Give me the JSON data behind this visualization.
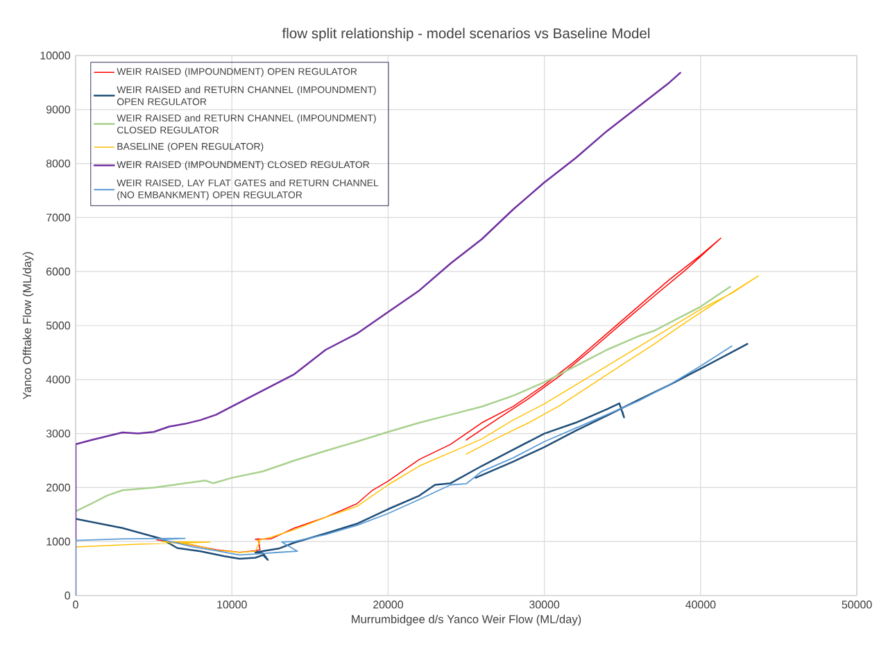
{
  "chart_data": {
    "type": "line",
    "title": "flow split relationship - model scenarios vs Baseline Model",
    "xlabel": "Murrumbidgee d/s Yanco Weir Flow (ML/day)",
    "ylabel": "Yanco Offtake Flow (ML/day)",
    "xlim": [
      0,
      50000
    ],
    "ylim": [
      0,
      10000
    ],
    "xticks": [
      0,
      10000,
      20000,
      30000,
      40000,
      50000
    ],
    "yticks": [
      0,
      1000,
      2000,
      3000,
      4000,
      5000,
      6000,
      7000,
      8000,
      9000,
      10000
    ],
    "grid": true,
    "legend": "top left",
    "marker": "none",
    "line_style": "solid",
    "series": [
      {
        "name": "WEIR RAISED (IMPOUNDMENT) OPEN REGULATOR",
        "color": "#ff0000",
        "x": [
          5200,
          7000,
          9000,
          10500,
          11500,
          11800,
          11700,
          11500,
          12500,
          14000,
          16000,
          18000,
          19000,
          20000,
          22000,
          24000,
          26000,
          28000,
          30000,
          32000,
          34000,
          36000,
          38000,
          40000,
          41300,
          39000,
          37000,
          35000,
          33000,
          31000,
          29000,
          27000,
          25000
        ],
        "values": [
          1030,
          960,
          850,
          800,
          830,
          850,
          1050,
          1040,
          1050,
          1250,
          1450,
          1700,
          1950,
          2120,
          2520,
          2800,
          3200,
          3500,
          3900,
          4350,
          4850,
          5350,
          5850,
          6300,
          6620,
          6020,
          5540,
          5050,
          4550,
          4070,
          3650,
          3270,
          2880
        ]
      },
      {
        "name": "WEIR RAISED and RETURN CHANNEL (IMPOUNDMENT) OPEN REGULATOR",
        "color": "#1f4e79",
        "x": [
          0,
          3000,
          5500,
          6500,
          8000,
          9500,
          10500,
          11500,
          12000,
          12300,
          12000,
          11500,
          13000,
          14000,
          16000,
          18000,
          20000,
          22000,
          23000,
          24000,
          26000,
          28000,
          30000,
          32000,
          34000,
          34800,
          35100,
          35000,
          null,
          25600,
          28000,
          30000,
          32000,
          34000,
          36000,
          38000,
          40000,
          43000
        ],
        "values": [
          1420,
          1250,
          1050,
          880,
          820,
          730,
          680,
          700,
          750,
          660,
          780,
          800,
          870,
          980,
          1150,
          1330,
          1600,
          1850,
          2050,
          2080,
          2400,
          2700,
          3000,
          3200,
          3450,
          3560,
          3300,
          3400,
          null,
          2180,
          2480,
          2750,
          3050,
          3330,
          3620,
          3900,
          4200,
          4660
        ]
      },
      {
        "name": "WEIR RAISED and RETURN CHANNEL (IMPOUNDMENT) CLOSED REGULATOR",
        "color": "#a9d18e",
        "x": [
          0,
          1000,
          2000,
          3000,
          5000,
          7000,
          8300,
          8800,
          10000,
          12000,
          14000,
          16000,
          18000,
          20000,
          22000,
          24000,
          26000,
          28000,
          30000,
          32000,
          34000,
          36000,
          37000,
          38000,
          40000,
          41900
        ],
        "values": [
          1560,
          1700,
          1850,
          1950,
          2000,
          2080,
          2130,
          2080,
          2180,
          2300,
          2500,
          2680,
          2850,
          3030,
          3200,
          3350,
          3500,
          3700,
          3950,
          4250,
          4550,
          4800,
          4900,
          5050,
          5350,
          5720
        ]
      },
      {
        "name": "BASELINE (OPEN REGULATOR)",
        "color": "#ffc000",
        "x": [
          0,
          4000,
          8600,
          5500,
          7500,
          9000,
          10500,
          11500,
          11800,
          11600,
          12500,
          14000,
          16000,
          18000,
          20000,
          22000,
          24000,
          26000,
          28000,
          30000,
          32000,
          34000,
          36000,
          38000,
          40000,
          42000,
          43700,
          41000,
          39000,
          37000,
          35000,
          33000,
          31000,
          29000,
          27000,
          25000
        ],
        "values": [
          900,
          950,
          990,
          1000,
          940,
          840,
          800,
          820,
          1000,
          1020,
          1080,
          1220,
          1450,
          1650,
          2050,
          2400,
          2650,
          2900,
          3250,
          3550,
          3900,
          4250,
          4600,
          4950,
          5300,
          5600,
          5920,
          5430,
          5050,
          4650,
          4280,
          3900,
          3520,
          3200,
          2920,
          2620
        ]
      },
      {
        "name": "WEIR RAISED (IMPOUNDMENT) CLOSED REGULATOR",
        "color": "#7030a0",
        "x": [
          0,
          0,
          1000,
          2000,
          3000,
          4000,
          5000,
          6000,
          7000,
          8000,
          9000,
          10000,
          12000,
          14000,
          16000,
          18000,
          20000,
          22000,
          24000,
          26000,
          28000,
          30000,
          32000,
          34000,
          36000,
          38000,
          38700
        ],
        "values": [
          0,
          2800,
          2880,
          2950,
          3020,
          3000,
          3030,
          3130,
          3180,
          3250,
          3350,
          3500,
          3800,
          4100,
          4550,
          4850,
          5250,
          5650,
          6150,
          6600,
          7150,
          7650,
          8100,
          8600,
          9050,
          9500,
          9680
        ]
      },
      {
        "name": "WEIR RAISED, LAY FLAT GATES and RETURN CHANNEL (NO EMBANKMENT) OPEN REGULATOR",
        "color": "#5b9bd5",
        "x": [
          0,
          0,
          3000,
          7000,
          5500,
          7500,
          9000,
          10500,
          12000,
          13000,
          14200,
          13200,
          14000,
          16000,
          18000,
          20000,
          22000,
          24000,
          25000,
          26000,
          28000,
          30000,
          32000,
          34000,
          36000,
          38000,
          40000,
          42000
        ],
        "values": [
          0,
          1020,
          1050,
          1060,
          1040,
          900,
          830,
          750,
          780,
          800,
          820,
          990,
          1000,
          1130,
          1300,
          1520,
          1780,
          2050,
          2070,
          2300,
          2550,
          2850,
          3100,
          3350,
          3600,
          3900,
          4250,
          4620
        ]
      }
    ]
  }
}
